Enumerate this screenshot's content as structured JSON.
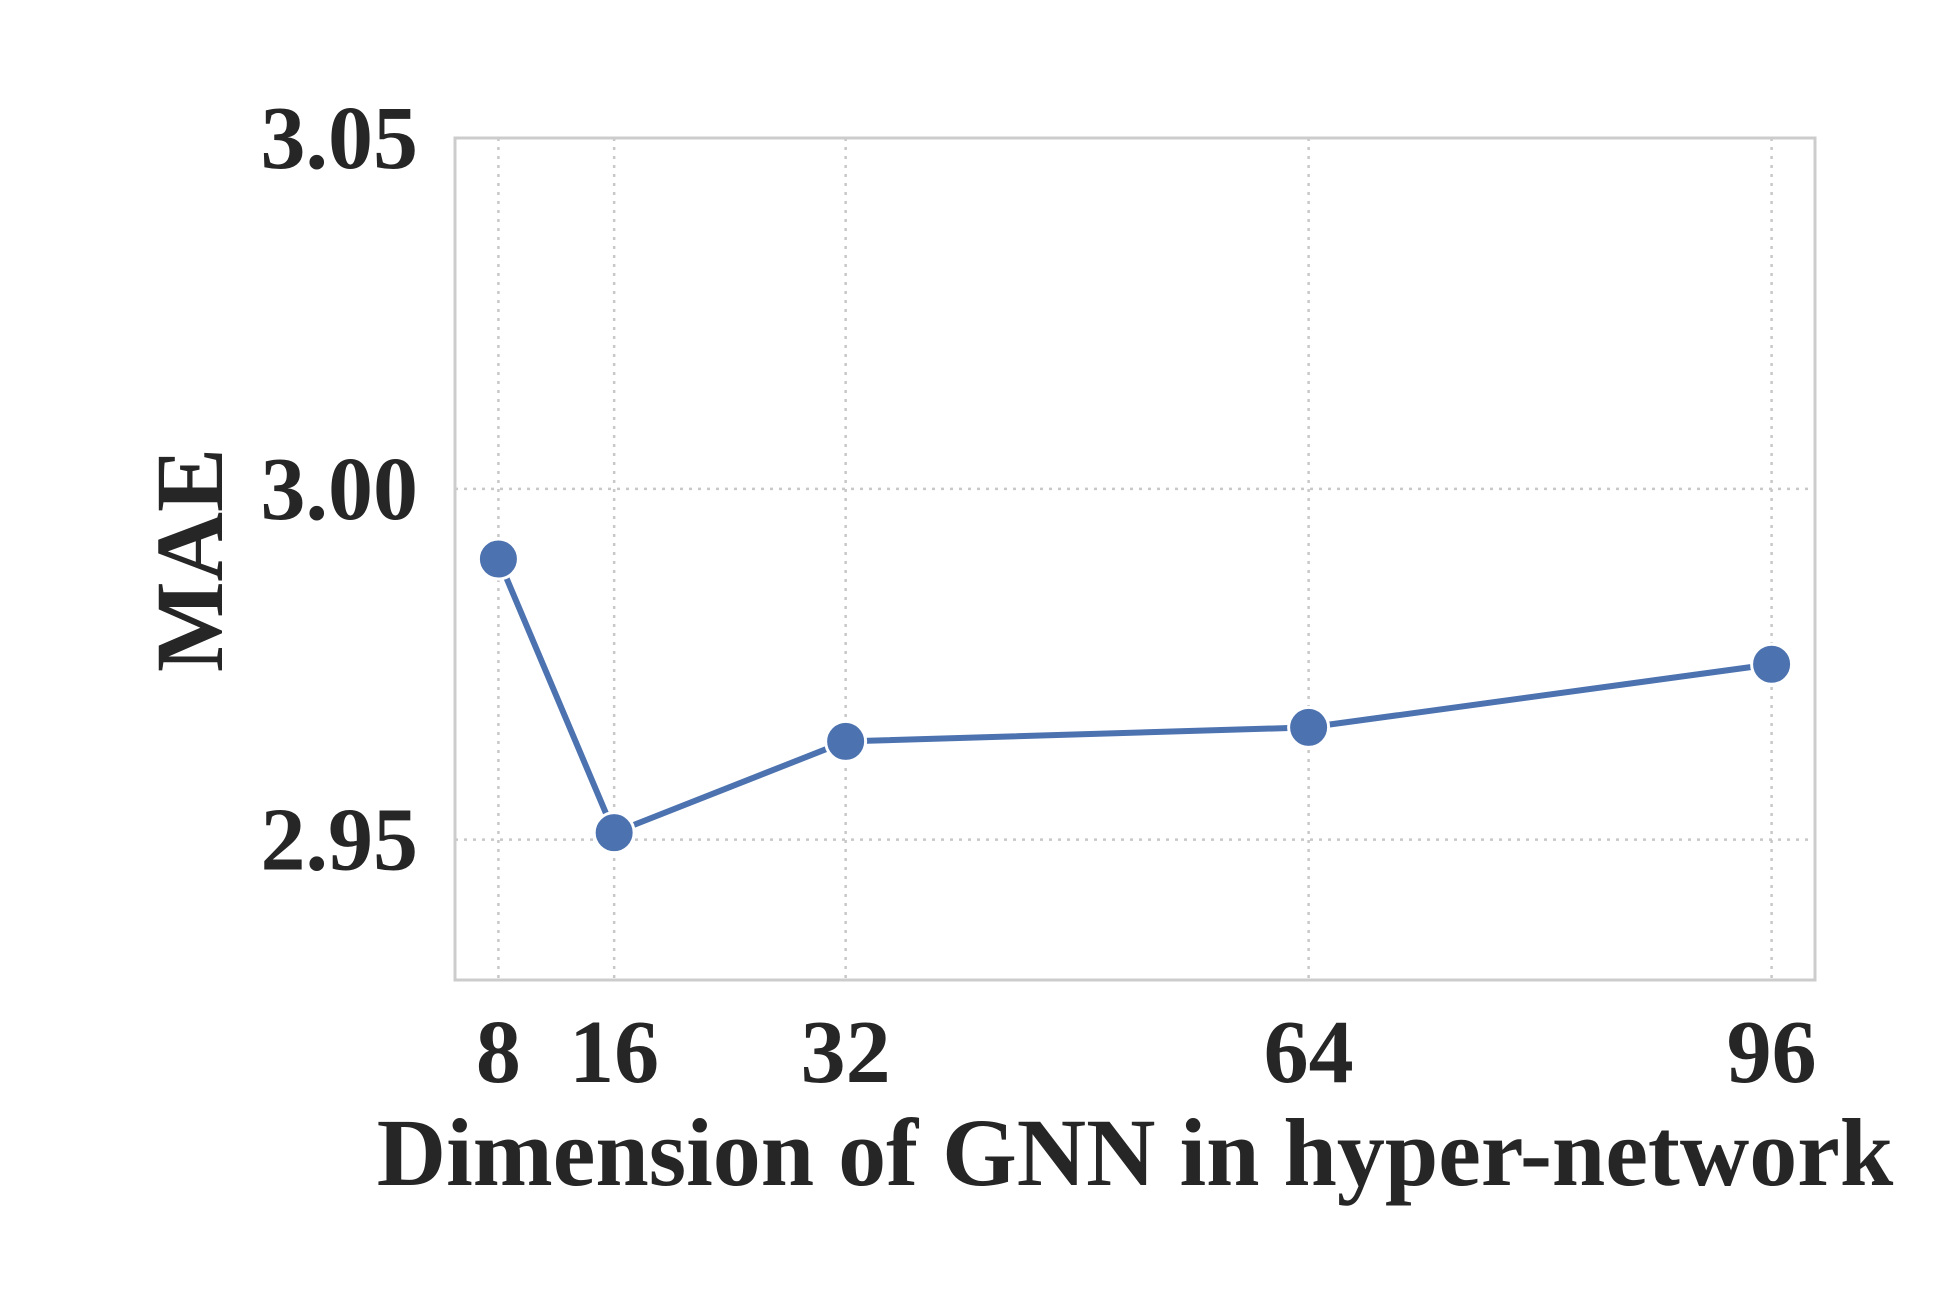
{
  "chart_data": {
    "type": "line",
    "title": "",
    "xlabel": "Dimension of GNN in hyper-network",
    "ylabel": "MAE",
    "x": [
      8,
      16,
      32,
      64,
      96
    ],
    "xticks": [
      "8",
      "16",
      "32",
      "64",
      "96"
    ],
    "yticks": [
      "2.95",
      "3.00",
      "3.05"
    ],
    "ytick_values": [
      2.95,
      3.0,
      3.05
    ],
    "xlim": [
      5.0,
      99.0
    ],
    "ylim": [
      2.93,
      3.05
    ],
    "grid": true,
    "grid_style": "dotted",
    "series": [
      {
        "values": [
          2.99,
          2.951,
          2.964,
          2.966,
          2.975
        ],
        "color": "#4c72b0",
        "marker": "circle"
      }
    ]
  }
}
